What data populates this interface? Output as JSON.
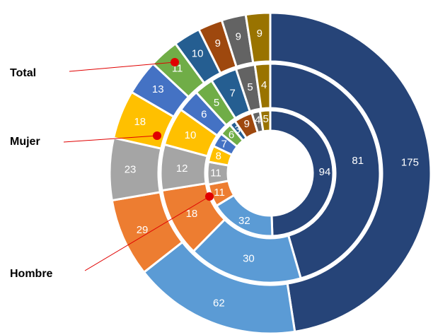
{
  "chart_data": {
    "type": "sunburst",
    "title": "",
    "rings": [
      {
        "name": "Total",
        "values": [
          175,
          62,
          29,
          23,
          18,
          13,
          11,
          10,
          9,
          9,
          9
        ],
        "labels": [
          "175",
          "62",
          "29",
          "23",
          "18",
          "13",
          "11",
          "10",
          "9",
          "9",
          "9"
        ]
      },
      {
        "name": "Mujer",
        "values": [
          81,
          30,
          18,
          12,
          10,
          6,
          5,
          7,
          0,
          5,
          4
        ],
        "labels": [
          "81",
          "30",
          "18",
          "12",
          "10",
          "6",
          "5",
          "7",
          "0",
          "5",
          "4"
        ]
      },
      {
        "name": "Hombre",
        "values": [
          94,
          32,
          11,
          11,
          8,
          7,
          6,
          3,
          9,
          4,
          5
        ],
        "labels": [
          "94",
          "32",
          "11",
          "11",
          "8",
          "7",
          "6",
          "3",
          "9",
          "4",
          "5"
        ]
      }
    ],
    "colors": [
      "#264478",
      "#5b9bd5",
      "#ed7d31",
      "#a5a5a5",
      "#ffc000",
      "#4472c4",
      "#70ad47",
      "#255e91",
      "#9e480e",
      "#636363",
      "#997300"
    ],
    "annotations": [
      {
        "text": "Total",
        "ring": "Total"
      },
      {
        "text": "Mujer",
        "ring": "Mujer"
      },
      {
        "text": "Hombre",
        "ring": "Hombre"
      }
    ],
    "annotation_color": "#e00000",
    "legend": "none"
  }
}
